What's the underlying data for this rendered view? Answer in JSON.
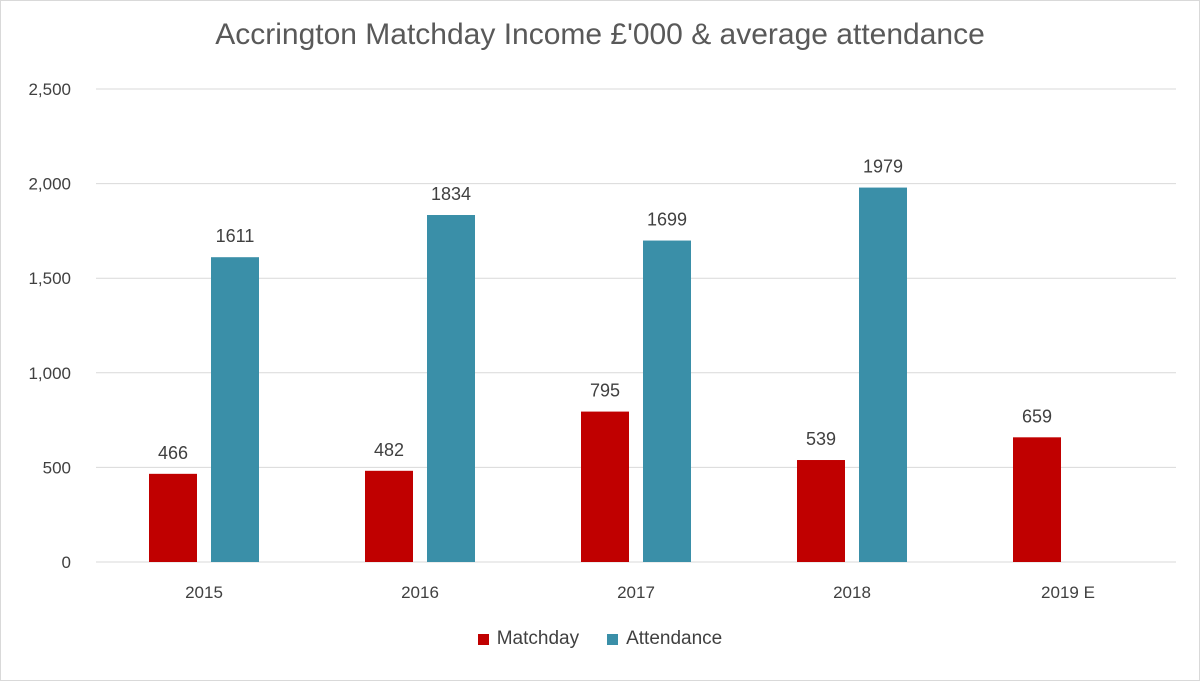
{
  "chart_data": {
    "type": "bar",
    "title": "Accrington Matchday Income £'000 & average attendance",
    "categories": [
      "2015",
      "2016",
      "2017",
      "2018",
      "2019 E"
    ],
    "series": [
      {
        "name": "Matchday",
        "values": [
          466,
          482,
          795,
          539,
          659
        ],
        "color": "#c00000"
      },
      {
        "name": "Attendance",
        "values": [
          1611,
          1834,
          1699,
          1979,
          null
        ],
        "color": "#3a8fa8"
      }
    ],
    "yticks": [
      "0",
      "500",
      "1,000",
      "1,500",
      "2,000",
      "2,500"
    ],
    "ylim": [
      0,
      2500
    ],
    "grid": true,
    "legend_position": "bottom"
  }
}
